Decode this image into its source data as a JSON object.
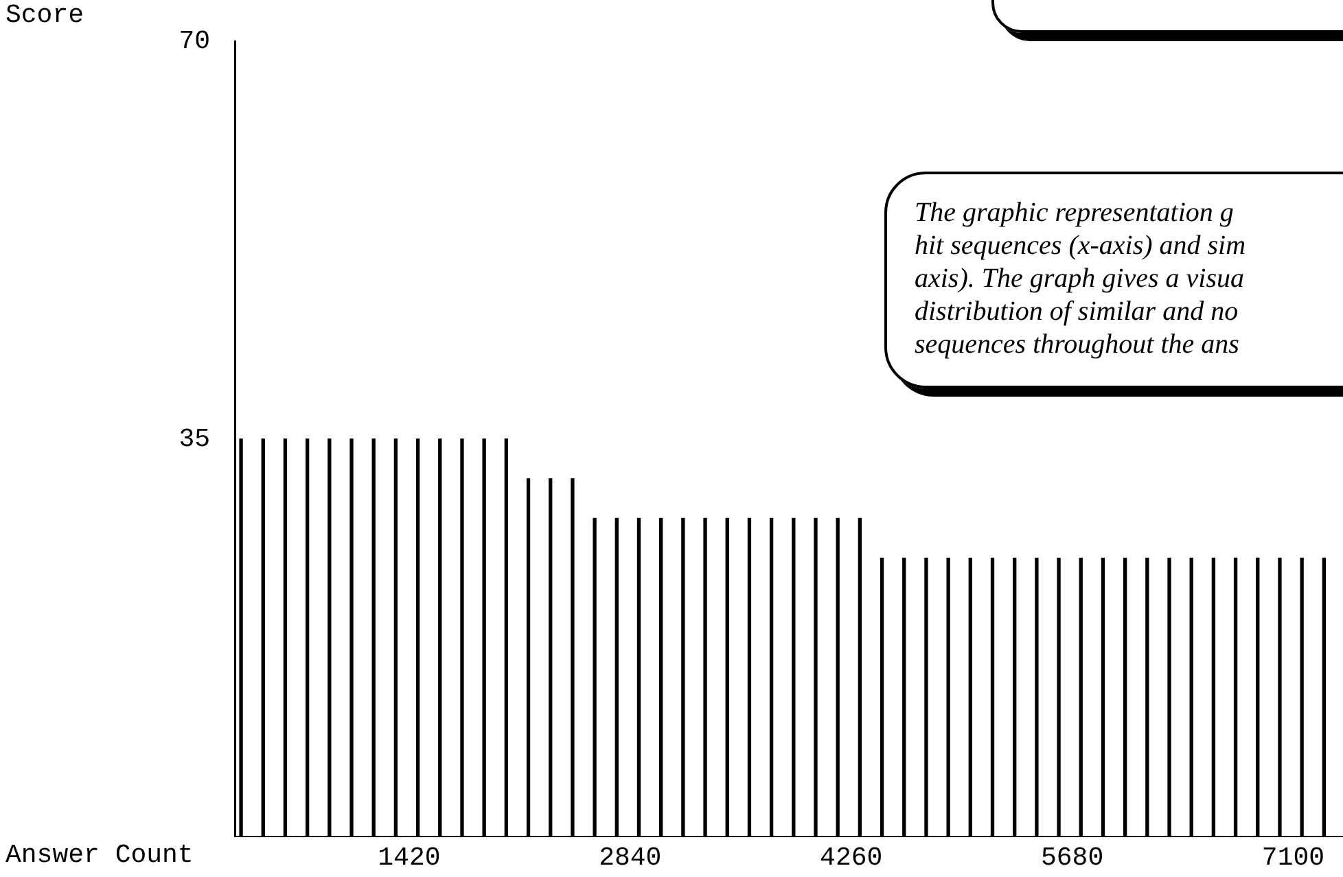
{
  "chart_data": {
    "type": "bar",
    "ylabel": "Score",
    "xlabel": "Answer Count",
    "color": "#000000",
    "x": [
      340,
      482,
      624,
      766,
      908,
      1050,
      1192,
      1334,
      1476,
      1618,
      1760,
      1902,
      2044,
      2186,
      2328,
      2470,
      2612,
      2754,
      2896,
      3038,
      3180,
      3322,
      3464,
      3606,
      3748,
      3890,
      4032,
      4174,
      4316,
      4458,
      4600,
      4742,
      4884,
      5026,
      5168,
      5310,
      5452,
      5594,
      5736,
      5878,
      6020,
      6162,
      6304,
      6446,
      6588,
      6730,
      6872,
      7014,
      7156,
      7298
    ],
    "values": [
      35,
      35,
      35,
      35,
      35,
      35,
      35,
      35,
      35,
      35,
      35,
      35,
      35,
      31.5,
      31.5,
      31.5,
      28,
      28,
      28,
      28,
      28,
      28,
      28,
      28,
      28,
      28,
      28,
      28,
      28,
      24.5,
      24.5,
      24.5,
      24.5,
      24.5,
      24.5,
      24.5,
      24.5,
      24.5,
      24.5,
      24.5,
      24.5,
      24.5,
      24.5,
      24.5,
      24.5,
      24.5,
      24.5,
      24.5,
      24.5,
      24.5
    ],
    "xlim": [
      300,
      7420
    ],
    "xticks": [
      1420,
      2840,
      4260,
      5680,
      7100
    ],
    "ylim": [
      0,
      70
    ],
    "yticks": [
      35,
      70
    ],
    "annotations": [
      "The graphic representation g\nhit sequences (x-axis) and sim\naxis). The graph gives a visua\ndistribution of similar and no\nsequences throughout the ans"
    ]
  }
}
